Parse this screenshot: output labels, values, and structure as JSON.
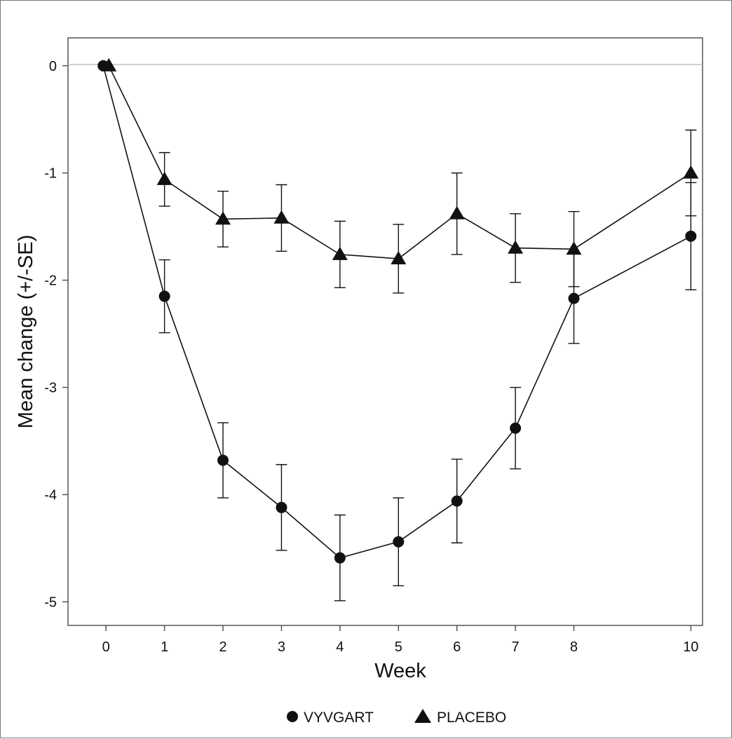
{
  "chart_data": {
    "type": "line",
    "title": "",
    "xlabel": "Week",
    "ylabel": "Mean change (+/-SE)",
    "x": [
      0,
      1,
      2,
      3,
      4,
      5,
      6,
      7,
      8,
      10
    ],
    "x_tick_labels": [
      "0",
      "1",
      "2",
      "3",
      "4",
      "5",
      "6",
      "7",
      "8",
      "10"
    ],
    "y_ticks": [
      0,
      -1,
      -2,
      -3,
      -4,
      -5
    ],
    "y_tick_labels": [
      "0",
      "-1",
      "-2",
      "-3",
      "-4",
      "-5"
    ],
    "xlim": [
      -0.65,
      10.2
    ],
    "ylim": [
      -5.22,
      0.26
    ],
    "reference_line_y": 0,
    "grid": false,
    "legend_position": "bottom",
    "series": [
      {
        "name": "VYVGART",
        "marker": "circle",
        "values": [
          0,
          -2.15,
          -3.68,
          -4.12,
          -4.59,
          -4.44,
          -4.06,
          -3.38,
          -2.17,
          -1.59
        ],
        "se": [
          0,
          0.34,
          0.35,
          0.4,
          0.4,
          0.41,
          0.39,
          0.38,
          0.42,
          0.5
        ]
      },
      {
        "name": "PLACEBO",
        "marker": "triangle",
        "values": [
          0,
          -1.06,
          -1.43,
          -1.42,
          -1.76,
          -1.8,
          -1.38,
          -1.7,
          -1.71,
          -1.0
        ],
        "se": [
          0,
          0.25,
          0.26,
          0.31,
          0.31,
          0.32,
          0.38,
          0.32,
          0.35,
          0.4
        ]
      }
    ],
    "colors": {
      "line": "#111111",
      "axis": "#555555",
      "reference_line": "#bdbdbd"
    }
  }
}
